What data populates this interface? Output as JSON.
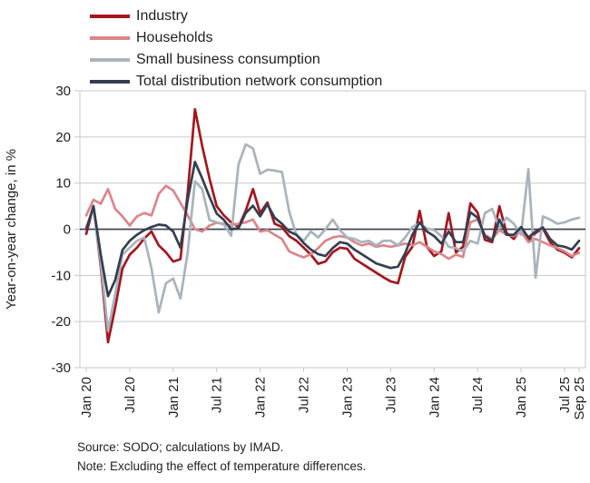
{
  "chart_data": {
    "type": "line",
    "title": "",
    "ylabel": "Year-on-year change, in %",
    "ylim": [
      -30,
      30
    ],
    "yticks": [
      30,
      20,
      10,
      0,
      -10,
      -20,
      -30
    ],
    "x_range": "Jan 2020 - Sep 2025, monthly",
    "x_tick_labels": [
      "Jan 20",
      "Jul 20",
      "Jan 21",
      "Jul 21",
      "Jan 22",
      "Jul 22",
      "Jan 23",
      "Jul 23",
      "Jan 24",
      "Jul 24",
      "Jan 25",
      "Jul 25",
      "Sep 25"
    ],
    "x_tick_month_indices": [
      0,
      6,
      12,
      18,
      24,
      30,
      36,
      42,
      48,
      54,
      60,
      66,
      68
    ],
    "grid": "horizontal",
    "legend_position": "top-left",
    "series": [
      {
        "name": "Industry",
        "color": "#A4161F",
        "values": [
          -1,
          5,
          -8,
          -24.5,
          -17,
          -8.5,
          -5.5,
          -4,
          -2,
          -0.5,
          -3.5,
          -5,
          -7,
          -6.5,
          8,
          26,
          18,
          11,
          5,
          3,
          1.5,
          0.5,
          4,
          8.7,
          3.5,
          5.8,
          1.2,
          0.5,
          -1.5,
          -2.5,
          -4,
          -5.5,
          -7.5,
          -7,
          -5,
          -4,
          -4.2,
          -6.4,
          -7.4,
          -8.4,
          -9.4,
          -10.4,
          -11.3,
          -11.7,
          -6,
          -3.8,
          4,
          -3.8,
          -5.8,
          -4.8,
          3.5,
          -5,
          -3.8,
          5.6,
          3.6,
          -2.3,
          -2.8,
          5,
          -0.8,
          -2.1,
          0.2,
          -2.5,
          -0.8,
          0.2,
          -2.8,
          -4.4,
          -5.1,
          -6.1,
          -4.1
        ]
      },
      {
        "name": "Households",
        "color": "#DC8589",
        "values": [
          3,
          6.4,
          5.5,
          8.7,
          4.4,
          2.8,
          0.8,
          2.8,
          3.5,
          3,
          7.7,
          9.4,
          8.4,
          5.7,
          3,
          0,
          -0.5,
          0.8,
          1.4,
          1.2,
          0.8,
          1.2,
          1.5,
          2.1,
          -0.5,
          -0.2,
          -1.2,
          -2.1,
          -4.8,
          -5.5,
          -6.1,
          -5.4,
          -4.1,
          -2.5,
          -1.8,
          -1.5,
          -1.8,
          -2.8,
          -3.5,
          -3.1,
          -3.8,
          -3.5,
          -3.8,
          -3.5,
          -3.1,
          -3.5,
          -2.8,
          -3.8,
          -4.8,
          -5.4,
          -6.4,
          -5.5,
          -6,
          1.5,
          2.1,
          -1.2,
          -2.1,
          -0.2,
          -1.2,
          -1.5,
          -0.5,
          -2.8,
          -2.1,
          -2.8,
          -3.5,
          -4.1,
          -4.8,
          -5.8,
          -5.1
        ]
      },
      {
        "name": "Small business consumption",
        "color": "#A9B3BC",
        "values": [
          0.5,
          4.4,
          -7,
          -22,
          -14,
          -5.5,
          -4,
          -2.5,
          -1.8,
          -8.5,
          -18,
          -11.7,
          -10.7,
          -15,
          -5,
          10.4,
          8.7,
          2,
          1.5,
          1,
          -1.4,
          14,
          18.4,
          17.5,
          12,
          12.9,
          12.7,
          12.4,
          3.8,
          -1.2,
          -2.5,
          -0.5,
          -1.8,
          0,
          2.1,
          -0.2,
          -1.8,
          -2.1,
          -2.8,
          -2.5,
          -3.5,
          -2.5,
          -2.5,
          -3.5,
          -1.8,
          0.5,
          1.3,
          0.2,
          -0.2,
          -1.5,
          -3.8,
          -4.1,
          -4.8,
          -2.5,
          -3.1,
          3.5,
          4.4,
          0.2,
          2.5,
          1.2,
          -1.2,
          13,
          -10.5,
          2.8,
          2.1,
          1.2,
          1.5,
          2.1,
          2.5
        ]
      },
      {
        "name": "Total distribution network consumption",
        "color": "#333F50",
        "values": [
          0,
          5,
          -5.5,
          -14.5,
          -11,
          -4.5,
          -2.5,
          -1.2,
          -0.2,
          0.5,
          1,
          0.8,
          -0.5,
          -4,
          6.4,
          14.6,
          11,
          7,
          3.4,
          2,
          0,
          0.2,
          3.5,
          5.1,
          2.8,
          5.4,
          2.5,
          1.2,
          -0.5,
          -1.2,
          -3,
          -4.4,
          -5.4,
          -5.8,
          -4.1,
          -2.8,
          -3.1,
          -4.4,
          -5.4,
          -6.4,
          -7.4,
          -7.9,
          -8.4,
          -8.1,
          -5.2,
          -1.2,
          1.5,
          -0.5,
          -1.5,
          -3.1,
          -0.5,
          -2.8,
          -2.8,
          3.7,
          2.5,
          -1.5,
          -2.5,
          2.1,
          -1.2,
          -1.2,
          0.5,
          -1.8,
          -0.5,
          0.4,
          -2.1,
          -3.5,
          -3.8,
          -4.4,
          -2.5
        ]
      }
    ]
  },
  "notes": {
    "source": "Source: SODO; calculations by IMAD.",
    "note": "Note: Excluding the effect of temperature differences."
  },
  "colors": {
    "gridline": "#C9C9C9",
    "zero_line": "#3E4656",
    "text": "#1F1F1F"
  }
}
